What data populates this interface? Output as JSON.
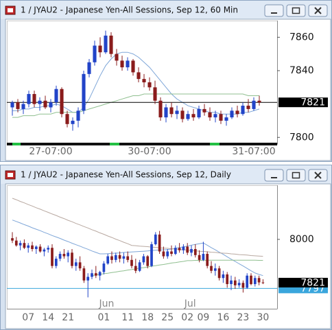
{
  "chart_data": [
    {
      "type": "candlestick",
      "title": "1 / JYAU2 - Japanese Yen-All Sessions, Sep 12, 60 Min",
      "up_color": "#2244c8",
      "down_color": "#8a1c1c",
      "ylim": [
        7796,
        7870
      ],
      "yticks": [
        7800,
        7840,
        7860
      ],
      "categories": [
        null,
        null,
        null,
        null,
        null,
        null,
        null,
        "27-07:00",
        null,
        null,
        null,
        null,
        null,
        null,
        null,
        null,
        null,
        null,
        null,
        null,
        null,
        null,
        null,
        null,
        null,
        "30-07:00",
        null,
        null,
        null,
        null,
        null,
        null,
        null,
        null,
        null,
        null,
        null,
        null,
        null,
        null,
        null,
        null,
        null,
        null,
        "31-07:00",
        null
      ],
      "candles": [
        [
          7818,
          7822,
          7813,
          7821
        ],
        [
          7821,
          7823,
          7815,
          7817
        ],
        [
          7817,
          7822,
          7814,
          7820
        ],
        [
          7820,
          7828,
          7818,
          7826
        ],
        [
          7826,
          7828,
          7818,
          7820
        ],
        [
          7820,
          7824,
          7816,
          7822
        ],
        [
          7822,
          7825,
          7817,
          7818
        ],
        [
          7818,
          7823,
          7815,
          7821
        ],
        [
          7821,
          7831,
          7819,
          7829
        ],
        [
          7829,
          7830,
          7812,
          7814
        ],
        [
          7814,
          7816,
          7806,
          7808
        ],
        [
          7808,
          7812,
          7804,
          7810
        ],
        [
          7810,
          7818,
          7806,
          7816
        ],
        [
          7816,
          7840,
          7814,
          7838
        ],
        [
          7838,
          7847,
          7836,
          7845
        ],
        [
          7845,
          7858,
          7843,
          7855
        ],
        [
          7855,
          7860,
          7848,
          7851
        ],
        [
          7851,
          7864,
          7850,
          7861
        ],
        [
          7861,
          7863,
          7848,
          7850
        ],
        [
          7850,
          7853,
          7843,
          7846
        ],
        [
          7846,
          7849,
          7840,
          7842
        ],
        [
          7842,
          7848,
          7840,
          7846
        ],
        [
          7846,
          7847,
          7837,
          7839
        ],
        [
          7839,
          7842,
          7833,
          7835
        ],
        [
          7835,
          7838,
          7830,
          7833
        ],
        [
          7833,
          7836,
          7828,
          7830
        ],
        [
          7830,
          7834,
          7820,
          7822
        ],
        [
          7822,
          7824,
          7810,
          7812
        ],
        [
          7812,
          7820,
          7809,
          7818
        ],
        [
          7818,
          7821,
          7812,
          7814
        ],
        [
          7814,
          7819,
          7811,
          7816
        ],
        [
          7816,
          7818,
          7809,
          7811
        ],
        [
          7811,
          7816,
          7810,
          7814
        ],
        [
          7814,
          7817,
          7810,
          7812
        ],
        [
          7812,
          7819,
          7811,
          7817
        ],
        [
          7817,
          7820,
          7813,
          7815
        ],
        [
          7815,
          7818,
          7810,
          7812
        ],
        [
          7812,
          7816,
          7809,
          7814
        ],
        [
          7814,
          7816,
          7808,
          7810
        ],
        [
          7810,
          7814,
          7807,
          7812
        ],
        [
          7812,
          7818,
          7811,
          7816
        ],
        [
          7816,
          7819,
          7812,
          7814
        ],
        [
          7814,
          7821,
          7813,
          7819
        ],
        [
          7819,
          7823,
          7815,
          7817
        ],
        [
          7817,
          7824,
          7816,
          7822
        ],
        [
          7822,
          7825,
          7819,
          7821
        ]
      ],
      "series": [
        {
          "color": "#7ea6d8",
          "values": [
            7816,
            7816,
            7817,
            7817,
            7818,
            7818,
            7819,
            7819,
            7820,
            7819,
            7817,
            7815,
            7815,
            7818,
            7823,
            7830,
            7837,
            7843,
            7847,
            7850,
            7851,
            7851,
            7850,
            7848,
            7845,
            7842,
            7838,
            7834,
            7830,
            7826,
            7823,
            7821,
            7819,
            7818,
            7817,
            7816,
            7815,
            7815,
            7814,
            7814,
            7814,
            7814,
            7815,
            7815,
            7816,
            7817
          ]
        },
        {
          "color": "#8fbf8f",
          "values": [
            7812,
            7812,
            7813,
            7813,
            7813,
            7814,
            7814,
            7814,
            7815,
            7815,
            7815,
            7815,
            7815,
            7816,
            7817,
            7818,
            7819,
            7820,
            7821,
            7822,
            7823,
            7824,
            7825,
            7825,
            7826,
            7826,
            7826,
            7826,
            7826,
            7826,
            7826,
            7826,
            7826,
            7826,
            7826,
            7826,
            7826,
            7826,
            7826,
            7826,
            7826,
            7826,
            7826,
            7825,
            7825,
            7825
          ]
        }
      ],
      "price_lines": [
        {
          "value": 7821,
          "color": "#000000",
          "line": true
        }
      ]
    },
    {
      "type": "candlestick",
      "title": "1 / JYAU2 - Japanese Yen-All Sessions, Sep 12, Daily",
      "up_color": "#2244c8",
      "down_color": "#8a1c1c",
      "ylim": [
        7713,
        8224
      ],
      "yticks": [
        8000
      ],
      "categories": [
        null,
        null,
        null,
        null,
        "07",
        null,
        null,
        null,
        null,
        "14",
        null,
        null,
        null,
        null,
        "21",
        null,
        null,
        null,
        null,
        null,
        null,
        null,
        null,
        "01",
        null,
        null,
        null,
        null,
        null,
        "11",
        null,
        null,
        null,
        null,
        "18",
        null,
        null,
        null,
        null,
        "25",
        null,
        null,
        null,
        null,
        "02",
        null,
        null,
        null,
        "09",
        null,
        null,
        null,
        null,
        "16",
        null,
        null,
        null,
        null,
        "23",
        null,
        null,
        null,
        null,
        "30"
      ],
      "months": [
        null,
        null,
        null,
        null,
        null,
        null,
        null,
        null,
        null,
        null,
        null,
        null,
        null,
        null,
        null,
        null,
        null,
        null,
        null,
        null,
        null,
        null,
        null,
        "Jun",
        null,
        null,
        null,
        null,
        null,
        null,
        null,
        null,
        null,
        null,
        null,
        null,
        null,
        null,
        null,
        null,
        null,
        null,
        null,
        null,
        "Jul",
        null,
        null,
        null,
        null,
        null,
        null,
        null,
        null,
        null,
        null,
        null,
        null,
        null,
        null,
        null,
        null,
        null,
        null,
        null
      ],
      "candles": [
        [
          8005,
          8030,
          7985,
          7995
        ],
        [
          7995,
          8010,
          7970,
          7975
        ],
        [
          7975,
          7995,
          7955,
          7985
        ],
        [
          7985,
          8000,
          7960,
          7965
        ],
        [
          7965,
          7985,
          7945,
          7975
        ],
        [
          7975,
          7990,
          7950,
          7960
        ],
        [
          7960,
          7975,
          7940,
          7970
        ],
        [
          7970,
          7980,
          7945,
          7950
        ],
        [
          7950,
          7965,
          7930,
          7958
        ],
        [
          7958,
          7975,
          7945,
          7965
        ],
        [
          7965,
          7980,
          7880,
          7890
        ],
        [
          7890,
          7930,
          7880,
          7920
        ],
        [
          7920,
          7950,
          7910,
          7940
        ],
        [
          7940,
          7960,
          7920,
          7930
        ],
        [
          7930,
          7955,
          7905,
          7945
        ],
        [
          7945,
          7960,
          7880,
          7890
        ],
        [
          7890,
          7920,
          7870,
          7905
        ],
        [
          7905,
          7930,
          7870,
          7880
        ],
        [
          7880,
          7890,
          7820,
          7830
        ],
        [
          7830,
          7860,
          7760,
          7845
        ],
        [
          7845,
          7875,
          7835,
          7860
        ],
        [
          7860,
          7890,
          7840,
          7850
        ],
        [
          7850,
          7870,
          7830,
          7865
        ],
        [
          7865,
          7910,
          7855,
          7900
        ],
        [
          7900,
          7940,
          7895,
          7930
        ],
        [
          7930,
          7950,
          7900,
          7915
        ],
        [
          7915,
          7945,
          7905,
          7935
        ],
        [
          7935,
          7950,
          7905,
          7920
        ],
        [
          7920,
          7945,
          7900,
          7930
        ],
        [
          7930,
          7950,
          7905,
          7915
        ],
        [
          7915,
          7935,
          7880,
          7890
        ],
        [
          7890,
          7920,
          7860,
          7870
        ],
        [
          7870,
          7915,
          7865,
          7905
        ],
        [
          7905,
          7940,
          7895,
          7930
        ],
        [
          7930,
          7935,
          7880,
          7890
        ],
        [
          7890,
          7990,
          7885,
          7980
        ],
        [
          7980,
          8030,
          7975,
          8020
        ],
        [
          8020,
          8035,
          7940,
          7950
        ],
        [
          7950,
          7970,
          7920,
          7930
        ],
        [
          7930,
          7960,
          7920,
          7950
        ],
        [
          7950,
          7975,
          7930,
          7940
        ],
        [
          7940,
          7975,
          7935,
          7965
        ],
        [
          7965,
          7985,
          7945,
          7955
        ],
        [
          7955,
          7980,
          7940,
          7970
        ],
        [
          7970,
          7985,
          7935,
          7945
        ],
        [
          7945,
          7975,
          7930,
          7960
        ],
        [
          7960,
          7980,
          7925,
          7935
        ],
        [
          7935,
          7955,
          7905,
          7915
        ],
        [
          7915,
          7990,
          7910,
          7940
        ],
        [
          7940,
          7950,
          7880,
          7890
        ],
        [
          7890,
          7910,
          7860,
          7870
        ],
        [
          7870,
          7900,
          7850,
          7880
        ],
        [
          7880,
          7890,
          7830,
          7840
        ],
        [
          7840,
          7870,
          7820,
          7855
        ],
        [
          7855,
          7865,
          7800,
          7815
        ],
        [
          7815,
          7850,
          7790,
          7830
        ],
        [
          7830,
          7845,
          7795,
          7810
        ],
        [
          7810,
          7835,
          7800,
          7820
        ],
        [
          7820,
          7830,
          7780,
          7800
        ],
        [
          7800,
          7860,
          7795,
          7850
        ],
        [
          7850,
          7860,
          7810,
          7815
        ],
        [
          7815,
          7850,
          7805,
          7840
        ],
        [
          7840,
          7850,
          7810,
          7822
        ],
        [
          7822,
          7835,
          7815,
          7821
        ]
      ],
      "series": [
        {
          "color": "#7ea6d8",
          "values": [
            8080,
            8074,
            8068,
            8061,
            8055,
            8048,
            8042,
            8036,
            8029,
            8023,
            8016,
            8010,
            8004,
            7997,
            7991,
            7984,
            7978,
            7972,
            7965,
            7959,
            7952,
            7946,
            7940,
            7940,
            7941,
            7942,
            7943,
            7944,
            7946,
            7947,
            7948,
            7949,
            7950,
            7951,
            7952,
            7954,
            7955,
            7956,
            7957,
            7958,
            7960,
            7963,
            7966,
            7969,
            7972,
            7976,
            7979,
            7982,
            7985,
            7976,
            7966,
            7957,
            7947,
            7938,
            7928,
            7918,
            7909,
            7899,
            7890,
            7880,
            7870,
            7861,
            7855,
            7850
          ]
        },
        {
          "color": "#b8a8a0",
          "values": [
            8170,
            8164,
            8157,
            8151,
            8144,
            8138,
            8131,
            8125,
            8118,
            8112,
            8105,
            8099,
            8092,
            8086,
            8079,
            8073,
            8066,
            8060,
            8053,
            8047,
            8040,
            8034,
            8027,
            8021,
            8014,
            8008,
            8001,
            7995,
            7988,
            7982,
            7975,
            7974,
            7972,
            7971,
            7970,
            7968,
            7967,
            7965,
            7964,
            7963,
            7961,
            7960,
            7958,
            7957,
            7956,
            7954,
            7953,
            7951,
            7950,
            7949,
            7947,
            7946,
            7944,
            7943,
            7942,
            7940,
            7939,
            7937,
            7936,
            7935,
            7933,
            7932,
            7931,
            7930
          ]
        },
        {
          "color": "#8fbf8f",
          "values": [
            null,
            null,
            null,
            null,
            null,
            null,
            null,
            null,
            null,
            null,
            null,
            null,
            null,
            null,
            null,
            null,
            null,
            null,
            null,
            null,
            7850,
            7853,
            7855,
            7858,
            7860,
            7863,
            7865,
            7868,
            7870,
            7873,
            7875,
            7878,
            7881,
            7883,
            7886,
            7889,
            7891,
            7894,
            7896,
            7899,
            7902,
            7904,
            7907,
            7909,
            7912,
            7912,
            7913,
            7913,
            7913,
            7914,
            7914,
            7914,
            7914,
            7914,
            7914,
            7914,
            7914,
            7914,
            7914,
            7914,
            7914,
            7914,
            7913,
            7913
          ]
        }
      ],
      "price_lines": [
        {
          "value": 7797,
          "color": "#3aa6dc",
          "line": true
        },
        {
          "value": 7821,
          "color": "#000000",
          "line": false
        }
      ]
    }
  ]
}
